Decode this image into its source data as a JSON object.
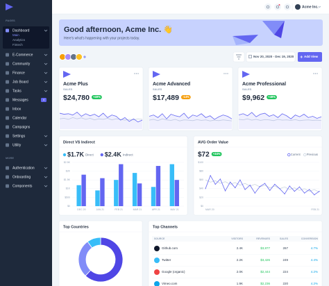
{
  "sidebar": {
    "sections": [
      {
        "title": "PAGES",
        "items": [
          {
            "label": "Dashboard",
            "expandable": true,
            "children": [
              "Main",
              "Analytics",
              "Fintech"
            ]
          },
          {
            "label": "E-Commerce",
            "expandable": true
          },
          {
            "label": "Community",
            "expandable": true
          },
          {
            "label": "Finance",
            "expandable": true
          },
          {
            "label": "Job Board",
            "expandable": true
          },
          {
            "label": "Tasks",
            "expandable": true
          },
          {
            "label": "Messages",
            "badge": 4
          },
          {
            "label": "Inbox"
          },
          {
            "label": "Calendar"
          },
          {
            "label": "Campaigns"
          },
          {
            "label": "Settings",
            "expandable": true
          },
          {
            "label": "Utility",
            "expandable": true
          }
        ]
      },
      {
        "title": "MORE",
        "items": [
          {
            "label": "Authentication",
            "expandable": true
          },
          {
            "label": "Onboarding",
            "expandable": true
          },
          {
            "label": "Components",
            "expandable": true
          }
        ]
      }
    ]
  },
  "header": {
    "account": "Acme Inc."
  },
  "banner": {
    "title": "Good afternoon, Acme Inc. 👋",
    "subtitle": "Here's what's happening with your projects today."
  },
  "toolbar": {
    "date_range": "Nov 20, 2020 - Dec 19, 2020",
    "add_button": "Add View"
  },
  "cards": [
    {
      "title": "Acme Plus",
      "label": "SALES",
      "value": "$24,780",
      "change": "+49%",
      "change_color": "#22c55e",
      "chart": {
        "type": "line",
        "ylim": [
          0,
          100
        ],
        "series": [
          {
            "color": "#6366f1",
            "values": [
              62,
              58,
              60,
              55,
              66,
              50,
              60,
              52,
              58,
              48,
              62,
              45,
              55,
              50,
              35,
              45,
              30,
              40,
              28,
              35
            ]
          },
          {
            "color": "#cbd5e1",
            "values": [
              40,
              42,
              38,
              45,
              40,
              44,
              38,
              42,
              36,
              40,
              38,
              42,
              36,
              40,
              38,
              35,
              38,
              36,
              40,
              38
            ]
          }
        ]
      }
    },
    {
      "title": "Acme Advanced",
      "label": "SALES",
      "value": "$17,489",
      "change": "-14%",
      "change_color": "#f59e0b",
      "chart": {
        "type": "line",
        "ylim": [
          0,
          100
        ],
        "series": [
          {
            "color": "#6366f1",
            "values": [
              50,
              55,
              45,
              60,
              40,
              58,
              52,
              48,
              62,
              42,
              55,
              50,
              60,
              45,
              52,
              38,
              48,
              55,
              50,
              40
            ]
          },
          {
            "color": "#cbd5e1",
            "values": [
              35,
              38,
              33,
              40,
              36,
              34,
              38,
              32,
              36,
              35,
              33,
              37,
              34,
              36,
              32,
              35,
              33,
              36,
              34,
              32
            ]
          }
        ]
      }
    },
    {
      "title": "Acme Professional",
      "label": "SALES",
      "value": "$9,962",
      "change": "+49%",
      "change_color": "#22c55e",
      "chart": {
        "type": "line",
        "ylim": [
          0,
          100
        ],
        "series": [
          {
            "color": "#6366f1",
            "values": [
              55,
              60,
              52,
              65,
              48,
              58,
              62,
              50,
              56,
              45,
              60,
              52,
              40,
              55,
              48,
              58,
              45,
              50,
              42,
              48
            ]
          },
          {
            "color": "#cbd5e1",
            "values": [
              38,
              36,
              40,
              35,
              38,
              34,
              37,
              36,
              33,
              38,
              35,
              36,
              34,
              37,
              33,
              35,
              36,
              34,
              35,
              33
            ]
          }
        ]
      }
    }
  ],
  "direct_vs_indirect": {
    "type": "bar",
    "title": "Direct VS Indirect",
    "categories": [
      "DEC 20",
      "JAN 21",
      "FEB 21",
      "MAR 21",
      "APR 21",
      "MAY 21"
    ],
    "series": [
      {
        "name": "Direct",
        "total": "$1.7K",
        "color": "#38bdf8",
        "values": [
          1200,
          900,
          1500,
          1900,
          1100,
          2400
        ]
      },
      {
        "name": "Indirect",
        "total": "$2.4K",
        "color": "#6366f1",
        "values": [
          1800,
          1600,
          2400,
          1300,
          2300,
          1500
        ]
      }
    ],
    "ylim": [
      0,
      2500
    ],
    "yticks": [
      {
        "value": 0,
        "label": "$0"
      },
      {
        "value": 500,
        "label": "$500"
      },
      {
        "value": 1000,
        "label": "$1K"
      },
      {
        "value": 1500,
        "label": "$1.5K"
      },
      {
        "value": 2000,
        "label": "$2K"
      },
      {
        "value": 2500,
        "label": "$2.5K"
      }
    ],
    "grid": true
  },
  "avg_order_value": {
    "type": "line",
    "title": "AVG Order Value",
    "value": "$72",
    "change": "+34%",
    "change_color": "#22c55e",
    "categories": [
      "MAR 20",
      null,
      null,
      null,
      null,
      null,
      null,
      null,
      null,
      null,
      null,
      null,
      null,
      null,
      null,
      null,
      null,
      null,
      null,
      null,
      null,
      null,
      null,
      "FEB 21"
    ],
    "series": [
      {
        "name": "Current",
        "color": "#6366f1",
        "values": [
          40,
          70,
          50,
          62,
          35,
          55,
          42,
          60,
          38,
          48,
          30,
          45,
          52,
          36,
          50,
          40,
          28,
          46,
          34,
          44,
          30,
          38,
          26,
          34
        ]
      },
      {
        "name": "Previous",
        "color": "#cbd5e1",
        "values": [
          60,
          55,
          58,
          52,
          56,
          50,
          54,
          48,
          52,
          46,
          50,
          44,
          48,
          42,
          46,
          40,
          44,
          38,
          42,
          36,
          40,
          34,
          38,
          32
        ]
      }
    ],
    "ylim": [
      0,
      100
    ],
    "yticks": [
      {
        "value": 0,
        "label": "$0"
      },
      {
        "value": 20,
        "label": "$20"
      },
      {
        "value": 40,
        "label": "$40"
      },
      {
        "value": 60,
        "label": "$60"
      },
      {
        "value": 80,
        "label": "$80"
      },
      {
        "value": 100,
        "label": "$100"
      }
    ],
    "grid": true
  },
  "top_countries": {
    "type": "doughnut",
    "title": "Top Countries",
    "series": [
      {
        "color": "#4f46e5",
        "values": [
          62
        ]
      },
      {
        "color": "#818cf8",
        "values": [
          28
        ]
      },
      {
        "color": "#38bdf8",
        "values": [
          10
        ]
      }
    ]
  },
  "top_channels": {
    "title": "Top Channels",
    "columns": [
      "SOURCE",
      "VISITORS",
      "REVENUES",
      "SALES",
      "CONVERSION"
    ],
    "rows": [
      {
        "source": "Github.com",
        "visitors": "2.4K",
        "revenues": "$3,877",
        "sales": 267,
        "conversion": "4.7%",
        "color": "#0f172a"
      },
      {
        "source": "Twitter",
        "visitors": "2.2K",
        "revenues": "$3,426",
        "sales": 249,
        "conversion": "4.4%",
        "color": "#38bdf8"
      },
      {
        "source": "Google (organic)",
        "visitors": "2.0K",
        "revenues": "$2,444",
        "sales": 224,
        "conversion": "4.2%",
        "color": "#ef4444"
      },
      {
        "source": "Vimeo.com",
        "visitors": "1.9K",
        "revenues": "$2,236",
        "sales": 220,
        "conversion": "4.2%",
        "color": "#0ea5e9"
      }
    ]
  }
}
